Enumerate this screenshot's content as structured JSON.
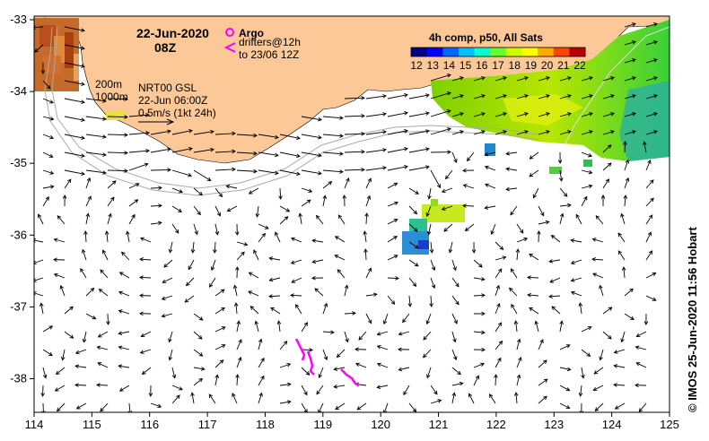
{
  "map": {
    "date": "22-Jun-2020",
    "hour": "08Z",
    "legend": {
      "argo_label": "Argo",
      "drifters_line1": "drifters@12h",
      "drifters_line2": "to 23/06 12Z",
      "argo_color": "#ff00ff",
      "drifter_color": "#ff00ff"
    },
    "depth_labels": [
      "200m",
      "1000m"
    ],
    "product_info": {
      "line1": "NRT00 GSL",
      "line2": "22-Jun 06:00Z",
      "scale_label": "0.5m/s (1kt 24h)"
    },
    "colorbar": {
      "title": "4h comp, p50, All Sats",
      "ticks": [
        "12",
        "13",
        "14",
        "15",
        "16",
        "17",
        "18",
        "19",
        "20",
        "21",
        "22"
      ],
      "colors": [
        "#00007f",
        "#0000ff",
        "#0066ff",
        "#00bfff",
        "#00ffcc",
        "#66ff33",
        "#ccff00",
        "#ffff00",
        "#ffaa00",
        "#ff4400",
        "#b30000"
      ]
    },
    "credit": "© IMOS 25-Jun-2020 11:56 Hobart",
    "x_ticks": [
      "114",
      "115",
      "116",
      "117",
      "118",
      "119",
      "120",
      "121",
      "122",
      "123",
      "124",
      "125"
    ],
    "y_ticks": [
      "-33",
      "-34",
      "-35",
      "-36",
      "-37",
      "-38"
    ],
    "colors": {
      "land": "#fcc898",
      "ocean": "#ffffff",
      "arrow": "#000000",
      "isobath": "#aaaaaa"
    }
  }
}
